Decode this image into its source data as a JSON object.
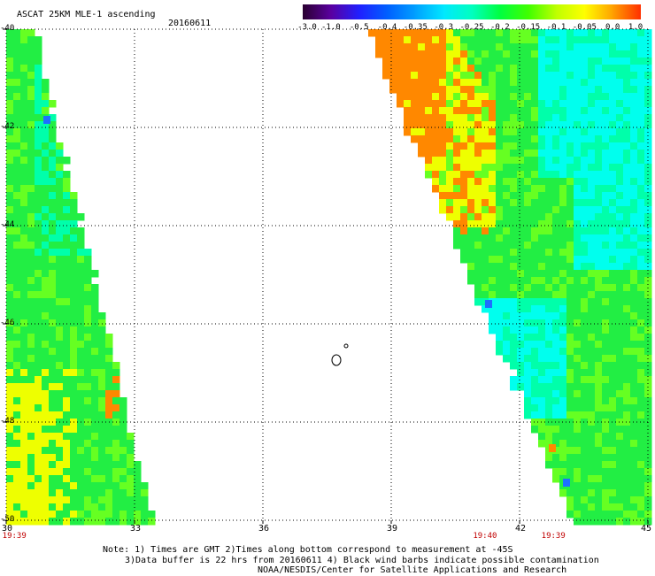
{
  "header": {
    "title": "ASCAT 25KM MLE-1 ascending",
    "date": "20160611"
  },
  "colorbar": {
    "ticks": [
      "-3.0",
      "-1.0",
      "-0.5",
      "-0.4",
      "-0.35",
      "-0.3",
      "-0.25",
      "-0.2",
      "-0.15",
      "-0.1",
      "-0.05",
      "0.0",
      "1.0"
    ],
    "colors": [
      "#2a0030",
      "#5a00a0",
      "#2020ff",
      "#0060ff",
      "#00a0ff",
      "#00e8ff",
      "#00ffc0",
      "#00ff40",
      "#40ff00",
      "#c0ff00",
      "#ffff00",
      "#ffa000",
      "#ff3000"
    ]
  },
  "map": {
    "lat_labels": [
      "-40",
      "-42",
      "-44",
      "-46",
      "-48",
      "-50"
    ],
    "lon_labels": [
      "30",
      "33",
      "36",
      "39",
      "42",
      "45"
    ],
    "lat_range": [
      -50,
      -40
    ],
    "lon_range": [
      30,
      45
    ],
    "times": [
      {
        "label": "19:39",
        "lon": 30.2
      },
      {
        "label": "19:40",
        "lon": 41.2
      },
      {
        "label": "19:39",
        "lon": 42.8
      }
    ],
    "grid": true,
    "colors": {
      "green": "#22ee44",
      "lime": "#66ff22",
      "yellow": "#eeff00",
      "orange": "#ff8800",
      "cyan": "#00ffee",
      "aqua": "#00ffaa",
      "blue": "#1e6fff"
    }
  },
  "footer": {
    "line1": "Note: 1) Times are GMT 2)Times along bottom correspond to measurement at -45S",
    "line2": "3)Data buffer is 22 hrs from 20160611 4) Black wind barbs indicate possible contamination",
    "line3": "NOAA/NESDIS/Center for Satellite Applications and Research"
  }
}
